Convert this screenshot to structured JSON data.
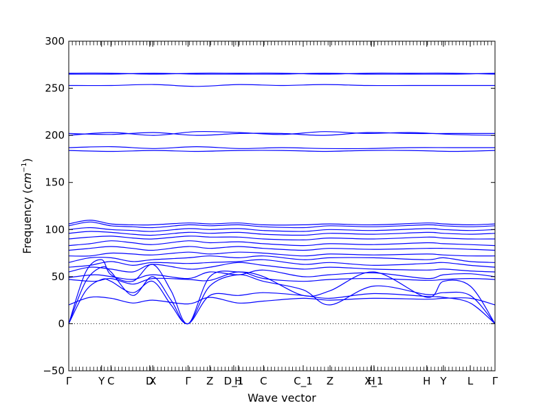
{
  "chart_data": {
    "type": "line",
    "xlabel": "Wave vector",
    "ylabel_prefix": "Frequency (",
    "ylabel_unit_base": "cm",
    "ylabel_unit_exp": "−1",
    "ylabel_suffix": ")",
    "ylim": [
      -50,
      300
    ],
    "yticks": [
      -50,
      0,
      50,
      100,
      150,
      200,
      250,
      300
    ],
    "xlim": [
      0,
      1
    ],
    "line_color": "#0000ff",
    "zero_line": "dotted",
    "xtick_labels": [
      {
        "x": 0.0,
        "label": "Γ"
      },
      {
        "x": 0.077,
        "label": "Y"
      },
      {
        "x": 0.099,
        "label": "C"
      },
      {
        "x": 0.19,
        "label": "D"
      },
      {
        "x": 0.197,
        "label": "X"
      },
      {
        "x": 0.28,
        "label": "Γ"
      },
      {
        "x": 0.331,
        "label": "Z"
      },
      {
        "x": 0.387,
        "label": "D_1"
      },
      {
        "x": 0.398,
        "label": "H"
      },
      {
        "x": 0.457,
        "label": "C"
      },
      {
        "x": 0.55,
        "label": "C_1"
      },
      {
        "x": 0.613,
        "label": "Z"
      },
      {
        "x": 0.71,
        "label": "H"
      },
      {
        "x": 0.716,
        "label": "X_1"
      },
      {
        "x": 0.84,
        "label": "H"
      },
      {
        "x": 0.879,
        "label": "Y"
      },
      {
        "x": 0.942,
        "label": "L"
      },
      {
        "x": 1.0,
        "label": "Γ"
      }
    ],
    "series": [
      {
        "x": [
          0,
          0.04,
          0.077,
          0.099,
          0.15,
          0.197,
          0.24,
          0.28,
          0.331,
          0.398,
          0.457,
          0.55,
          0.613,
          0.716,
          0.84,
          0.879,
          0.942,
          1
        ],
        "y": [
          0,
          35,
          47,
          45,
          33,
          45,
          20,
          0,
          30,
          30,
          33,
          30,
          27,
          32,
          29,
          28,
          22,
          0
        ]
      },
      {
        "x": [
          0,
          0.04,
          0.077,
          0.099,
          0.15,
          0.197,
          0.24,
          0.28,
          0.331,
          0.398,
          0.457,
          0.55,
          0.613,
          0.716,
          0.84,
          0.879,
          0.942,
          1
        ],
        "y": [
          0,
          45,
          60,
          55,
          30,
          50,
          25,
          0,
          40,
          52,
          45,
          36,
          20,
          40,
          31,
          33,
          30,
          0
        ]
      },
      {
        "x": [
          0,
          0.04,
          0.077,
          0.099,
          0.15,
          0.197,
          0.24,
          0.28,
          0.331,
          0.398,
          0.457,
          0.55,
          0.613,
          0.716,
          0.84,
          0.879,
          0.942,
          1
        ],
        "y": [
          0,
          55,
          68,
          52,
          45,
          63,
          35,
          0,
          50,
          55,
          50,
          30,
          35,
          55,
          28,
          45,
          40,
          0
        ]
      },
      {
        "x": [
          0,
          0.05,
          0.099,
          0.15,
          0.197,
          0.28,
          0.331,
          0.398,
          0.457,
          0.55,
          0.613,
          0.716,
          0.84,
          0.879,
          0.942,
          1
        ],
        "y": [
          20,
          28,
          27,
          22,
          25,
          21,
          28,
          22,
          24,
          27,
          25,
          27,
          26,
          27,
          27,
          20
        ]
      },
      {
        "x": [
          0,
          0.06,
          0.099,
          0.15,
          0.197,
          0.28,
          0.331,
          0.398,
          0.457,
          0.55,
          0.613,
          0.716,
          0.84,
          0.879,
          0.942,
          1
        ],
        "y": [
          47,
          45,
          48,
          42,
          48,
          47,
          46,
          55,
          48,
          45,
          47,
          48,
          46,
          47,
          48,
          47
        ]
      },
      {
        "x": [
          0,
          0.06,
          0.099,
          0.15,
          0.197,
          0.28,
          0.331,
          0.398,
          0.457,
          0.55,
          0.613,
          0.716,
          0.84,
          0.879,
          0.942,
          1
        ],
        "y": [
          49,
          52,
          50,
          47,
          52,
          48,
          55,
          52,
          57,
          50,
          52,
          54,
          48,
          52,
          53,
          50
        ]
      },
      {
        "x": [
          0,
          0.05,
          0.099,
          0.15,
          0.197,
          0.28,
          0.331,
          0.398,
          0.457,
          0.55,
          0.613,
          0.716,
          0.84,
          0.879,
          0.942,
          1
        ],
        "y": [
          55,
          60,
          58,
          55,
          63,
          58,
          60,
          65,
          62,
          58,
          60,
          58,
          57,
          58,
          56,
          55
        ]
      },
      {
        "x": [
          0,
          0.05,
          0.099,
          0.15,
          0.197,
          0.28,
          0.331,
          0.398,
          0.457,
          0.55,
          0.613,
          0.716,
          0.84,
          0.879,
          0.942,
          1
        ],
        "y": [
          60,
          62,
          66,
          62,
          65,
          64,
          65,
          66,
          68,
          63,
          65,
          62,
          64,
          65,
          62,
          60
        ]
      },
      {
        "x": [
          0,
          0.05,
          0.099,
          0.15,
          0.197,
          0.28,
          0.331,
          0.398,
          0.457,
          0.55,
          0.613,
          0.716,
          0.84,
          0.879,
          0.942,
          1
        ],
        "y": [
          65,
          70,
          70,
          66,
          68,
          70,
          72,
          70,
          72,
          68,
          70,
          70,
          68,
          70,
          66,
          65
        ]
      },
      {
        "x": [
          0,
          0.05,
          0.099,
          0.15,
          0.197,
          0.28,
          0.331,
          0.398,
          0.457,
          0.55,
          0.613,
          0.716,
          0.84,
          0.879,
          0.942,
          1
        ],
        "y": [
          72,
          72,
          75,
          74,
          73,
          76,
          74,
          76,
          75,
          72,
          74,
          73,
          74,
          73,
          72,
          72
        ]
      },
      {
        "x": [
          0,
          0.05,
          0.099,
          0.15,
          0.197,
          0.28,
          0.331,
          0.398,
          0.457,
          0.55,
          0.613,
          0.716,
          0.84,
          0.879,
          0.942,
          1
        ],
        "y": [
          78,
          80,
          82,
          80,
          78,
          82,
          80,
          82,
          80,
          78,
          80,
          79,
          80,
          80,
          79,
          78
        ]
      },
      {
        "x": [
          0,
          0.05,
          0.099,
          0.15,
          0.197,
          0.28,
          0.331,
          0.398,
          0.457,
          0.55,
          0.613,
          0.716,
          0.84,
          0.879,
          0.942,
          1
        ],
        "y": [
          83,
          85,
          88,
          86,
          84,
          88,
          86,
          87,
          85,
          83,
          85,
          84,
          86,
          85,
          84,
          83
        ]
      },
      {
        "x": [
          0,
          0.05,
          0.099,
          0.15,
          0.197,
          0.28,
          0.331,
          0.398,
          0.457,
          0.55,
          0.613,
          0.716,
          0.84,
          0.879,
          0.942,
          1
        ],
        "y": [
          90,
          92,
          93,
          91,
          90,
          93,
          92,
          92,
          90,
          89,
          91,
          90,
          92,
          91,
          90,
          90
        ]
      },
      {
        "x": [
          0,
          0.05,
          0.099,
          0.15,
          0.197,
          0.28,
          0.331,
          0.398,
          0.457,
          0.55,
          0.613,
          0.716,
          0.84,
          0.879,
          0.942,
          1
        ],
        "y": [
          96,
          98,
          97,
          95,
          94,
          97,
          96,
          97,
          95,
          94,
          96,
          95,
          97,
          96,
          95,
          96
        ]
      },
      {
        "x": [
          0,
          0.05,
          0.099,
          0.15,
          0.197,
          0.28,
          0.331,
          0.398,
          0.457,
          0.55,
          0.613,
          0.716,
          0.84,
          0.879,
          0.942,
          1
        ],
        "y": [
          100,
          102,
          100,
          99,
          98,
          101,
          100,
          101,
          99,
          98,
          100,
          99,
          101,
          100,
          99,
          100
        ]
      },
      {
        "x": [
          0,
          0.05,
          0.099,
          0.15,
          0.197,
          0.28,
          0.331,
          0.398,
          0.457,
          0.55,
          0.613,
          0.716,
          0.84,
          0.879,
          0.942,
          1
        ],
        "y": [
          104,
          108,
          104,
          103,
          102,
          105,
          104,
          105,
          103,
          102,
          104,
          103,
          105,
          104,
          103,
          104
        ]
      },
      {
        "x": [
          0,
          0.05,
          0.099,
          0.15,
          0.197,
          0.28,
          0.331,
          0.398,
          0.457,
          0.55,
          0.613,
          0.716,
          0.84,
          0.879,
          0.942,
          1
        ],
        "y": [
          106,
          110,
          106,
          105,
          105,
          107,
          106,
          107,
          105,
          105,
          106,
          105,
          107,
          106,
          105,
          106
        ]
      },
      {
        "x": [
          0,
          0.1,
          0.2,
          0.3,
          0.4,
          0.5,
          0.6,
          0.7,
          0.8,
          0.9,
          1
        ],
        "y": [
          184,
          183,
          184,
          183,
          184,
          184,
          183,
          184,
          184,
          183,
          184
        ]
      },
      {
        "x": [
          0,
          0.1,
          0.2,
          0.3,
          0.4,
          0.5,
          0.6,
          0.7,
          0.8,
          0.9,
          1
        ],
        "y": [
          187,
          188,
          186,
          188,
          186,
          187,
          186,
          186,
          187,
          187,
          187
        ]
      },
      {
        "x": [
          0,
          0.1,
          0.2,
          0.3,
          0.4,
          0.5,
          0.6,
          0.7,
          0.8,
          0.9,
          1
        ],
        "y": [
          200,
          203,
          200,
          204,
          203,
          201,
          204,
          202,
          203,
          201,
          200
        ]
      },
      {
        "x": [
          0,
          0.1,
          0.2,
          0.3,
          0.4,
          0.5,
          0.6,
          0.7,
          0.8,
          0.9,
          1
        ],
        "y": [
          202,
          201,
          203,
          200,
          202,
          202,
          200,
          203,
          202,
          202,
          202
        ]
      },
      {
        "x": [
          0,
          0.1,
          0.2,
          0.3,
          0.4,
          0.5,
          0.6,
          0.7,
          0.8,
          0.9,
          1
        ],
        "y": [
          253,
          253,
          254,
          252,
          254,
          253,
          254,
          253,
          253,
          253,
          253
        ]
      },
      {
        "x": [
          0,
          0.1,
          0.2,
          0.3,
          0.4,
          0.5,
          0.6,
          0.7,
          0.8,
          0.9,
          1
        ],
        "y": [
          265,
          265,
          266,
          265,
          265,
          265,
          266,
          265,
          265,
          265,
          266
        ]
      },
      {
        "x": [
          0,
          0.1,
          0.2,
          0.3,
          0.4,
          0.5,
          0.6,
          0.7,
          0.8,
          0.9,
          1
        ],
        "y": [
          266,
          266,
          265,
          266,
          266,
          266,
          265,
          266,
          266,
          266,
          265
        ]
      }
    ]
  }
}
